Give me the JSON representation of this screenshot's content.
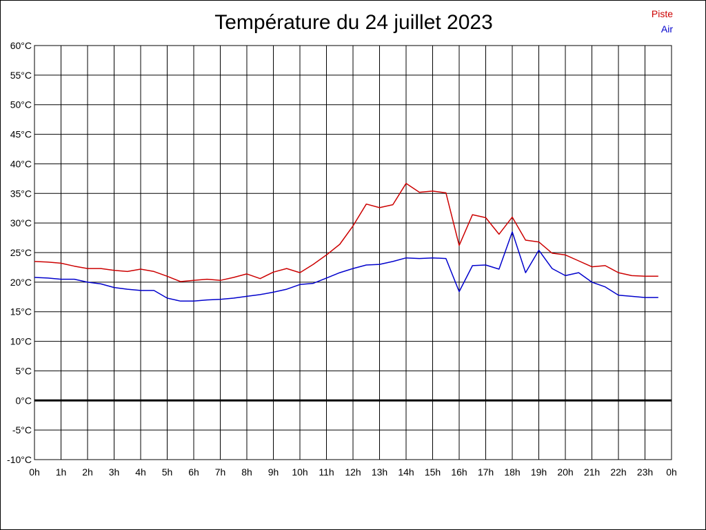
{
  "chart_data": {
    "type": "line",
    "title": "Température du 24 juillet 2023",
    "xlabel": "",
    "ylabel": "",
    "ylim": [
      -10,
      60
    ],
    "xlim": [
      0,
      24
    ],
    "grid": true,
    "legend_placement": "top-right",
    "x_ticks": [
      "0h",
      "1h",
      "2h",
      "3h",
      "4h",
      "5h",
      "6h",
      "7h",
      "8h",
      "9h",
      "10h",
      "11h",
      "12h",
      "13h",
      "14h",
      "15h",
      "16h",
      "17h",
      "18h",
      "19h",
      "20h",
      "21h",
      "22h",
      "23h",
      "0h"
    ],
    "y_ticks": [
      "-10°C",
      "-5°C",
      "0°C",
      "5°C",
      "10°C",
      "15°C",
      "20°C",
      "25°C",
      "30°C",
      "35°C",
      "40°C",
      "45°C",
      "50°C",
      "55°C",
      "60°C"
    ],
    "y_tick_values": [
      -10,
      -5,
      0,
      5,
      10,
      15,
      20,
      25,
      30,
      35,
      40,
      45,
      50,
      55,
      60
    ],
    "x": [
      0,
      0.5,
      1,
      1.5,
      2,
      2.5,
      3,
      3.5,
      4,
      4.5,
      5,
      5.5,
      6,
      6.5,
      7,
      7.5,
      8,
      8.5,
      9,
      9.5,
      10,
      10.5,
      11,
      11.5,
      12,
      12.5,
      13,
      13.5,
      14,
      14.5,
      15,
      15.5,
      16,
      16.5,
      17,
      17.5,
      18,
      18.5,
      19,
      19.5,
      20,
      20.5,
      21,
      21.5,
      22,
      22.5,
      23,
      23.5
    ],
    "series": [
      {
        "name": "Piste",
        "color": "#cc0000",
        "values": [
          23.5,
          23.4,
          23.2,
          22.7,
          22.3,
          22.3,
          22.0,
          21.8,
          22.2,
          21.8,
          21.0,
          20.1,
          20.3,
          20.5,
          20.3,
          20.8,
          21.4,
          20.6,
          21.7,
          22.3,
          21.6,
          23.0,
          24.6,
          26.4,
          29.5,
          33.2,
          32.6,
          33.1,
          36.7,
          35.2,
          35.4,
          35.1,
          26.2,
          31.4,
          30.9,
          28.1,
          31.0,
          27.1,
          26.8,
          24.9,
          24.6,
          23.6,
          22.6,
          22.8,
          21.6,
          21.1,
          21.0,
          21.0
        ]
      },
      {
        "name": "Air",
        "color": "#0000cc",
        "values": [
          20.8,
          20.7,
          20.5,
          20.5,
          20.0,
          19.7,
          19.1,
          18.8,
          18.6,
          18.6,
          17.3,
          16.8,
          16.8,
          17.0,
          17.1,
          17.3,
          17.6,
          17.9,
          18.3,
          18.8,
          19.6,
          19.8,
          20.7,
          21.6,
          22.3,
          22.9,
          23.0,
          23.5,
          24.1,
          24.0,
          24.1,
          24.0,
          18.4,
          22.8,
          22.9,
          22.2,
          28.5,
          21.6,
          25.4,
          22.3,
          21.1,
          21.6,
          20.0,
          19.2,
          17.8,
          17.6,
          17.4,
          17.4
        ]
      }
    ]
  }
}
